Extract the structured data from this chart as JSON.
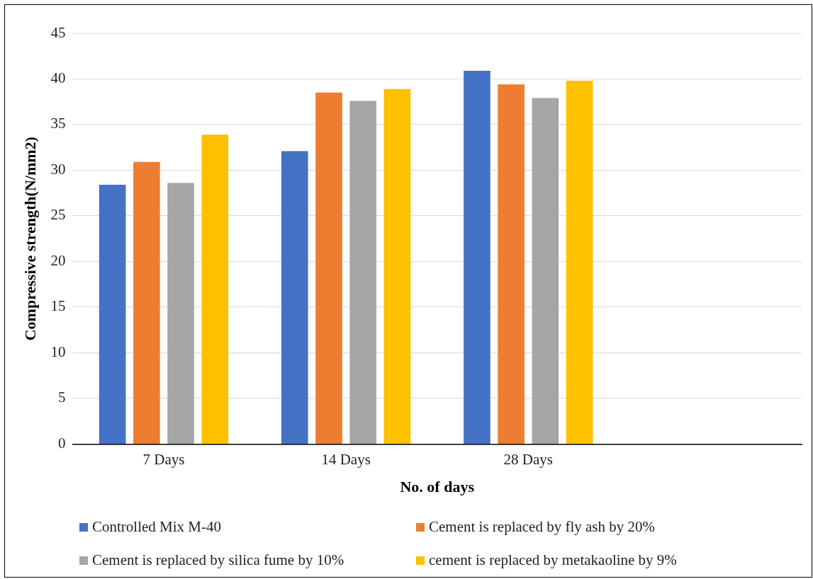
{
  "chart_data": {
    "type": "bar",
    "xlabel": "No. of days",
    "ylabel": "Compressive strength(N/mm2)",
    "categories": [
      "7 Days",
      "14 Days",
      "28 Days",
      null
    ],
    "series": [
      {
        "name": "Controlled Mix M-40",
        "color": "#4472c4",
        "values": [
          28.4,
          32.1,
          40.9,
          null
        ]
      },
      {
        "name": "Cement is replaced by fly ash by 20%",
        "color": "#ed7d31",
        "values": [
          30.9,
          38.5,
          39.4,
          null
        ]
      },
      {
        "name": "Cement is replaced by silica fume by 10%",
        "color": "#a5a5a5",
        "values": [
          28.6,
          37.6,
          37.9,
          null
        ]
      },
      {
        "name": "cement is replaced by metakaoline by 9%",
        "color": "#ffc000",
        "values": [
          33.9,
          38.9,
          39.8,
          null
        ]
      }
    ],
    "ylim": [
      0,
      45
    ],
    "yticks": [
      0,
      5,
      10,
      15,
      20,
      25,
      30,
      35,
      40,
      45
    ],
    "grid": "y",
    "legend": "bottom"
  }
}
